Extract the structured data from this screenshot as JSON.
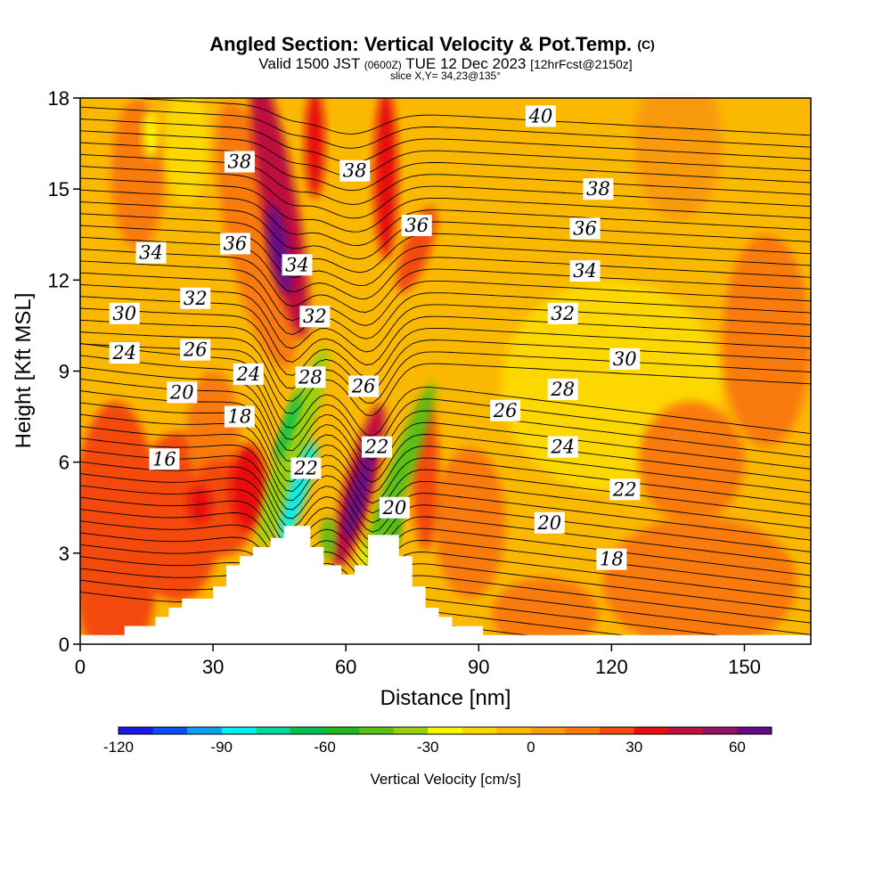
{
  "title": {
    "main": "Angled Section: Vertical Velocity & Pot.Temp.",
    "main_suffix": "(C)",
    "valid_prefix": "Valid 1500 JST",
    "valid_zulu": "(0600Z)",
    "valid_date": "TUE 12 Dec 2023",
    "valid_fcst": "[12hrFcst@2150z]",
    "slice": "slice X,Y= 34,23@135°"
  },
  "chart_data": {
    "type": "heatmap",
    "title": "Angled Section: Vertical Velocity & Pot.Temp. (C)",
    "xlabel": "Distance [nm]",
    "ylabel": "Height [Kft MSL]",
    "xlim": [
      0,
      165
    ],
    "ylim": [
      0,
      18
    ],
    "x_ticks": [
      0,
      30,
      60,
      90,
      120,
      150
    ],
    "y_ticks": [
      0,
      3,
      6,
      9,
      12,
      15,
      18
    ],
    "colorbar": {
      "label": "Vertical Velocity [cm/s]",
      "min": -120,
      "max": 70,
      "step": 10,
      "tick_labels": [
        "-120",
        "-90",
        "-60",
        "-30",
        "0",
        "30",
        "60"
      ],
      "colors": [
        "#1818e8",
        "#0a50f0",
        "#0aa0f0",
        "#00f0f0",
        "#00d8a0",
        "#00c050",
        "#20b820",
        "#58c018",
        "#98d010",
        "#f8f800",
        "#fcd800",
        "#fbb800",
        "#f99a10",
        "#f97a10",
        "#f44a10",
        "#e81010",
        "#c01040",
        "#981060",
        "#660a88"
      ]
    },
    "terrain_kft": [
      [
        0,
        0.3
      ],
      [
        10,
        0.3
      ],
      [
        10,
        0.6
      ],
      [
        17,
        0.6
      ],
      [
        17,
        0.9
      ],
      [
        20,
        0.9
      ],
      [
        20,
        1.2
      ],
      [
        23,
        1.2
      ],
      [
        23,
        1.5
      ],
      [
        30,
        1.5
      ],
      [
        30,
        1.9
      ],
      [
        33,
        1.9
      ],
      [
        33,
        2.6
      ],
      [
        36,
        2.6
      ],
      [
        36,
        2.9
      ],
      [
        39,
        2.9
      ],
      [
        39,
        3.2
      ],
      [
        43,
        3.2
      ],
      [
        43,
        3.5
      ],
      [
        46,
        3.5
      ],
      [
        46,
        3.9
      ],
      [
        52,
        3.9
      ],
      [
        52,
        3.2
      ],
      [
        55,
        3.2
      ],
      [
        55,
        2.6
      ],
      [
        59,
        2.6
      ],
      [
        59,
        2.3
      ],
      [
        62,
        2.3
      ],
      [
        62,
        2.6
      ],
      [
        65,
        2.6
      ],
      [
        65,
        3.6
      ],
      [
        72,
        3.6
      ],
      [
        72,
        2.9
      ],
      [
        75,
        2.9
      ],
      [
        75,
        1.9
      ],
      [
        78,
        1.9
      ],
      [
        78,
        1.2
      ],
      [
        81,
        1.2
      ],
      [
        81,
        0.9
      ],
      [
        84,
        0.9
      ],
      [
        84,
        0.6
      ],
      [
        91,
        0.6
      ],
      [
        91,
        0.3
      ],
      [
        165,
        0.3
      ]
    ],
    "theta_contour_labels": [
      {
        "value": "40",
        "x": 104,
        "y": 17.4
      },
      {
        "value": "38",
        "x": 36,
        "y": 15.9
      },
      {
        "value": "38",
        "x": 62,
        "y": 15.6
      },
      {
        "value": "38",
        "x": 117,
        "y": 15.0
      },
      {
        "value": "36",
        "x": 35,
        "y": 13.2
      },
      {
        "value": "36",
        "x": 76,
        "y": 13.8
      },
      {
        "value": "36",
        "x": 114,
        "y": 13.7
      },
      {
        "value": "34",
        "x": 16,
        "y": 12.9
      },
      {
        "value": "34",
        "x": 49,
        "y": 12.5
      },
      {
        "value": "34",
        "x": 114,
        "y": 12.3
      },
      {
        "value": "32",
        "x": 26,
        "y": 11.4
      },
      {
        "value": "32",
        "x": 53,
        "y": 10.8
      },
      {
        "value": "32",
        "x": 109,
        "y": 10.9
      },
      {
        "value": "30",
        "x": 10,
        "y": 10.9
      },
      {
        "value": "30",
        "x": 123,
        "y": 9.4
      },
      {
        "value": "28",
        "x": 52,
        "y": 8.8
      },
      {
        "value": "28",
        "x": 109,
        "y": 8.4
      },
      {
        "value": "26",
        "x": 26,
        "y": 9.7
      },
      {
        "value": "26",
        "x": 64,
        "y": 8.5
      },
      {
        "value": "26",
        "x": 96,
        "y": 7.7
      },
      {
        "value": "24",
        "x": 10,
        "y": 9.6
      },
      {
        "value": "24",
        "x": 38,
        "y": 8.9
      },
      {
        "value": "24",
        "x": 109,
        "y": 6.5
      },
      {
        "value": "22",
        "x": 51,
        "y": 5.8
      },
      {
        "value": "22",
        "x": 67,
        "y": 6.5
      },
      {
        "value": "22",
        "x": 123,
        "y": 5.1
      },
      {
        "value": "20",
        "x": 23,
        "y": 8.3
      },
      {
        "value": "20",
        "x": 71,
        "y": 4.5
      },
      {
        "value": "20",
        "x": 106,
        "y": 4.0
      },
      {
        "value": "18",
        "x": 36,
        "y": 7.5
      },
      {
        "value": "18",
        "x": 120,
        "y": 2.8
      },
      {
        "value": "16",
        "x": 19,
        "y": 6.1
      }
    ],
    "velocity_features": [
      {
        "kind": "updraft",
        "peak_cm_s": 65,
        "x": 45,
        "y": 14.5
      },
      {
        "kind": "updraft",
        "peak_cm_s": 40,
        "x": 53,
        "y": 16.5
      },
      {
        "kind": "updraft",
        "peak_cm_s": 40,
        "x": 69,
        "y": 15.5
      },
      {
        "kind": "updraft",
        "peak_cm_s": 70,
        "x": 63,
        "y": 5.0
      },
      {
        "kind": "updraft",
        "peak_cm_s": 30,
        "x": 32,
        "y": 4.5
      },
      {
        "kind": "updraft",
        "peak_cm_s": 25,
        "x": 78,
        "y": 5.5
      },
      {
        "kind": "downdraft",
        "peak_cm_s": -95,
        "x": 49,
        "y": 5.0
      },
      {
        "kind": "downdraft",
        "peak_cm_s": -55,
        "x": 72,
        "y": 4.5
      }
    ]
  }
}
